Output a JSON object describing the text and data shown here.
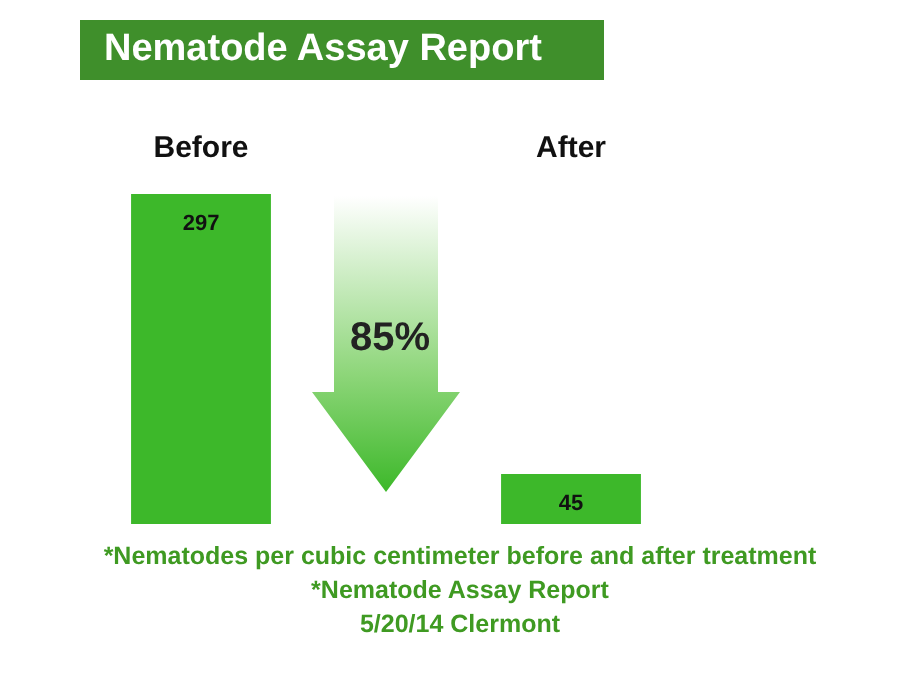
{
  "chart_data": {
    "type": "bar",
    "title": "Nematode Assay Report",
    "categories": [
      "Before",
      "After"
    ],
    "values": [
      297,
      45
    ],
    "color": "#3db82a",
    "data_labels": true,
    "relative": false,
    "annotations": [
      "85%",
      "*Nematodes per cubic centimeter before and after treatment",
      "*Nematode Assay Report",
      "5/20/14 Clermont"
    ]
  }
}
